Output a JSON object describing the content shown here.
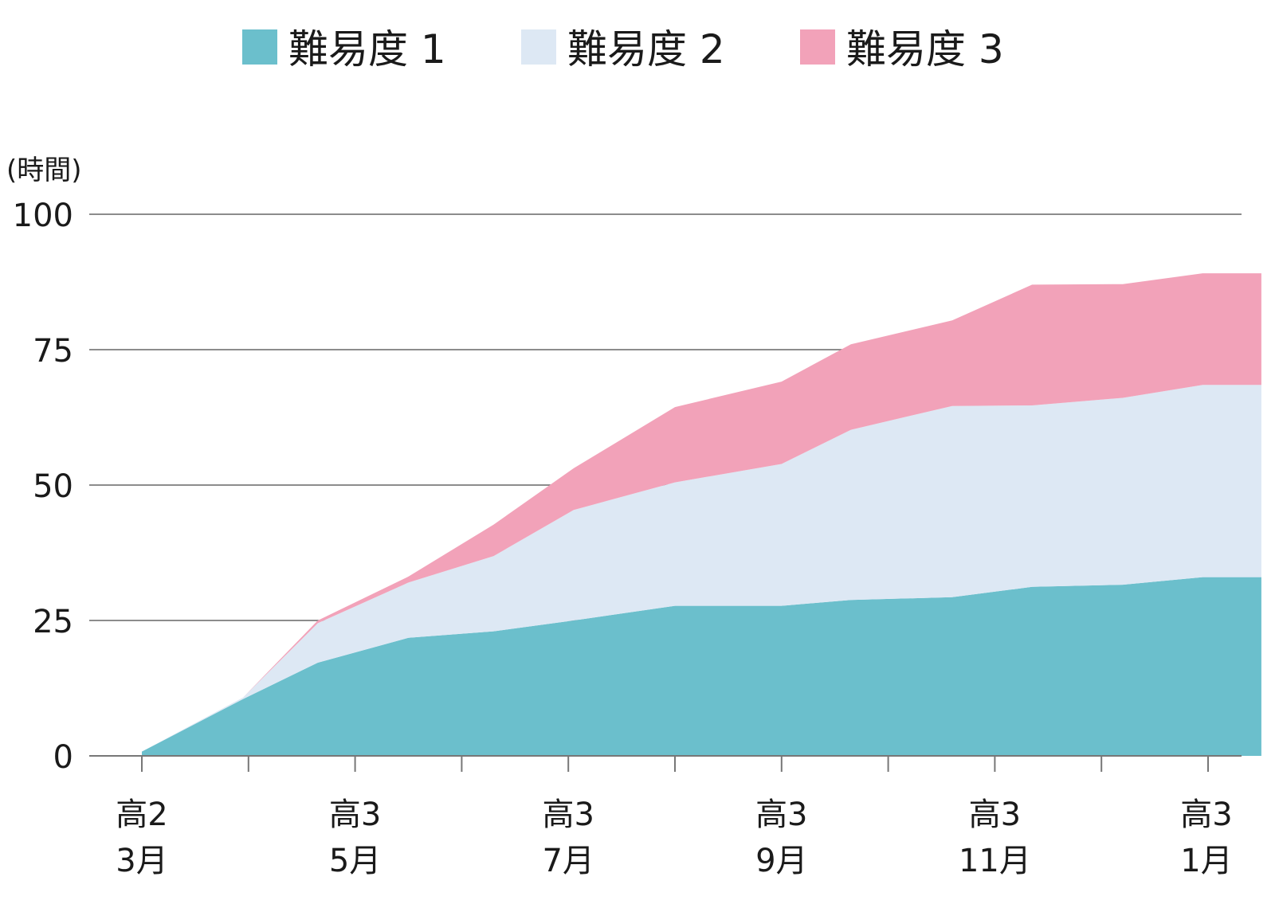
{
  "chart_data": {
    "type": "area",
    "stacked": true,
    "title": "",
    "ylabel": "(時間)",
    "ylim": [
      0,
      100
    ],
    "yticks": [
      0,
      25,
      50,
      75,
      100
    ],
    "grid": "horizontal",
    "legend_position": "top",
    "x_tick_labels": [
      {
        "line1": "高2",
        "line2": "3月"
      },
      {
        "line1": "高3",
        "line2": "5月"
      },
      {
        "line1": "高3",
        "line2": "7月"
      },
      {
        "line1": "高3",
        "line2": "9月"
      },
      {
        "line1": "高3",
        "line2": "11月"
      },
      {
        "line1": "高3",
        "line2": "1月"
      }
    ],
    "x": [
      0,
      0.95,
      1.65,
      2.5,
      3.3,
      4.05,
      5.0,
      6.0,
      6.65,
      7.6,
      8.35,
      9.2,
      9.95,
      10.5
    ],
    "series": [
      {
        "name": "難易度 1",
        "color": "#6bbfcc",
        "values": [
          0.8,
          10.5,
          17.2,
          21.8,
          23.0,
          25.0,
          27.7,
          27.7,
          28.8,
          29.3,
          31.2,
          31.6,
          33.0,
          33.0
        ]
      },
      {
        "name": "難易度 2",
        "color": "#dde8f4",
        "values": [
          0.0,
          0.3,
          7.3,
          10.2,
          13.9,
          20.4,
          22.8,
          26.2,
          31.4,
          35.3,
          33.5,
          34.5,
          35.5,
          35.5
        ]
      },
      {
        "name": "難易度 3",
        "color": "#f2a2b9",
        "values": [
          0.0,
          0.0,
          0.5,
          1.1,
          5.8,
          7.7,
          13.9,
          15.2,
          15.8,
          15.8,
          22.3,
          21.0,
          20.6,
          20.6
        ]
      }
    ]
  }
}
